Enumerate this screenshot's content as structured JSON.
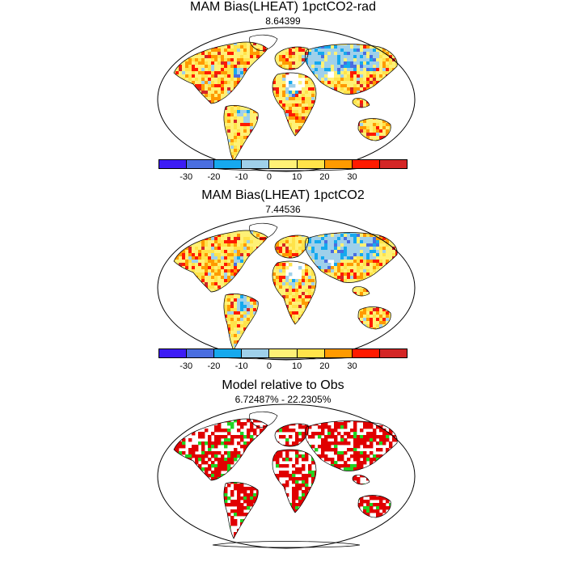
{
  "panels": [
    {
      "title": "MAM Bias(LHEAT) 1pctCO2-rad",
      "subtitle": "8.64399",
      "kind": "bias",
      "seed": 11
    },
    {
      "title": "MAM Bias(LHEAT) 1pctCO2",
      "subtitle": "7.44536",
      "kind": "bias",
      "seed": 29
    },
    {
      "title": "Model relative to Obs",
      "subtitle": "6.72487% - 22.2305%",
      "kind": "relative",
      "seed": 47
    }
  ],
  "colorbar": {
    "colors": [
      "#3d1cf5",
      "#4a6ee0",
      "#16a9ee",
      "#9fd0ea",
      "#fff176",
      "#ffe34a",
      "#ff9a00",
      "#ff1a00",
      "#d42626"
    ],
    "labels": [
      "-30",
      "-20",
      "-10",
      "0",
      "10",
      "20",
      "30"
    ]
  },
  "relative_colors": {
    "worse": "#e00000",
    "better": "#22d322"
  }
}
